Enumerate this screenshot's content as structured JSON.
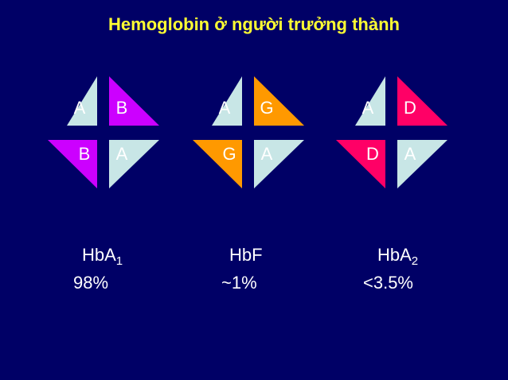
{
  "title": "Hemoglobin ở người trưởng thành",
  "groups": [
    {
      "cells": [
        "A",
        "B",
        "B",
        "A"
      ],
      "name": "HbA",
      "sub": "1",
      "value": "98%"
    },
    {
      "cells": [
        "A",
        "G",
        "G",
        "A"
      ],
      "name": "HbF",
      "value": "~1%"
    },
    {
      "cells": [
        "A",
        "D",
        "D",
        "A"
      ],
      "name": "HbA",
      "sub": "2",
      "value": "<3.5%"
    }
  ]
}
